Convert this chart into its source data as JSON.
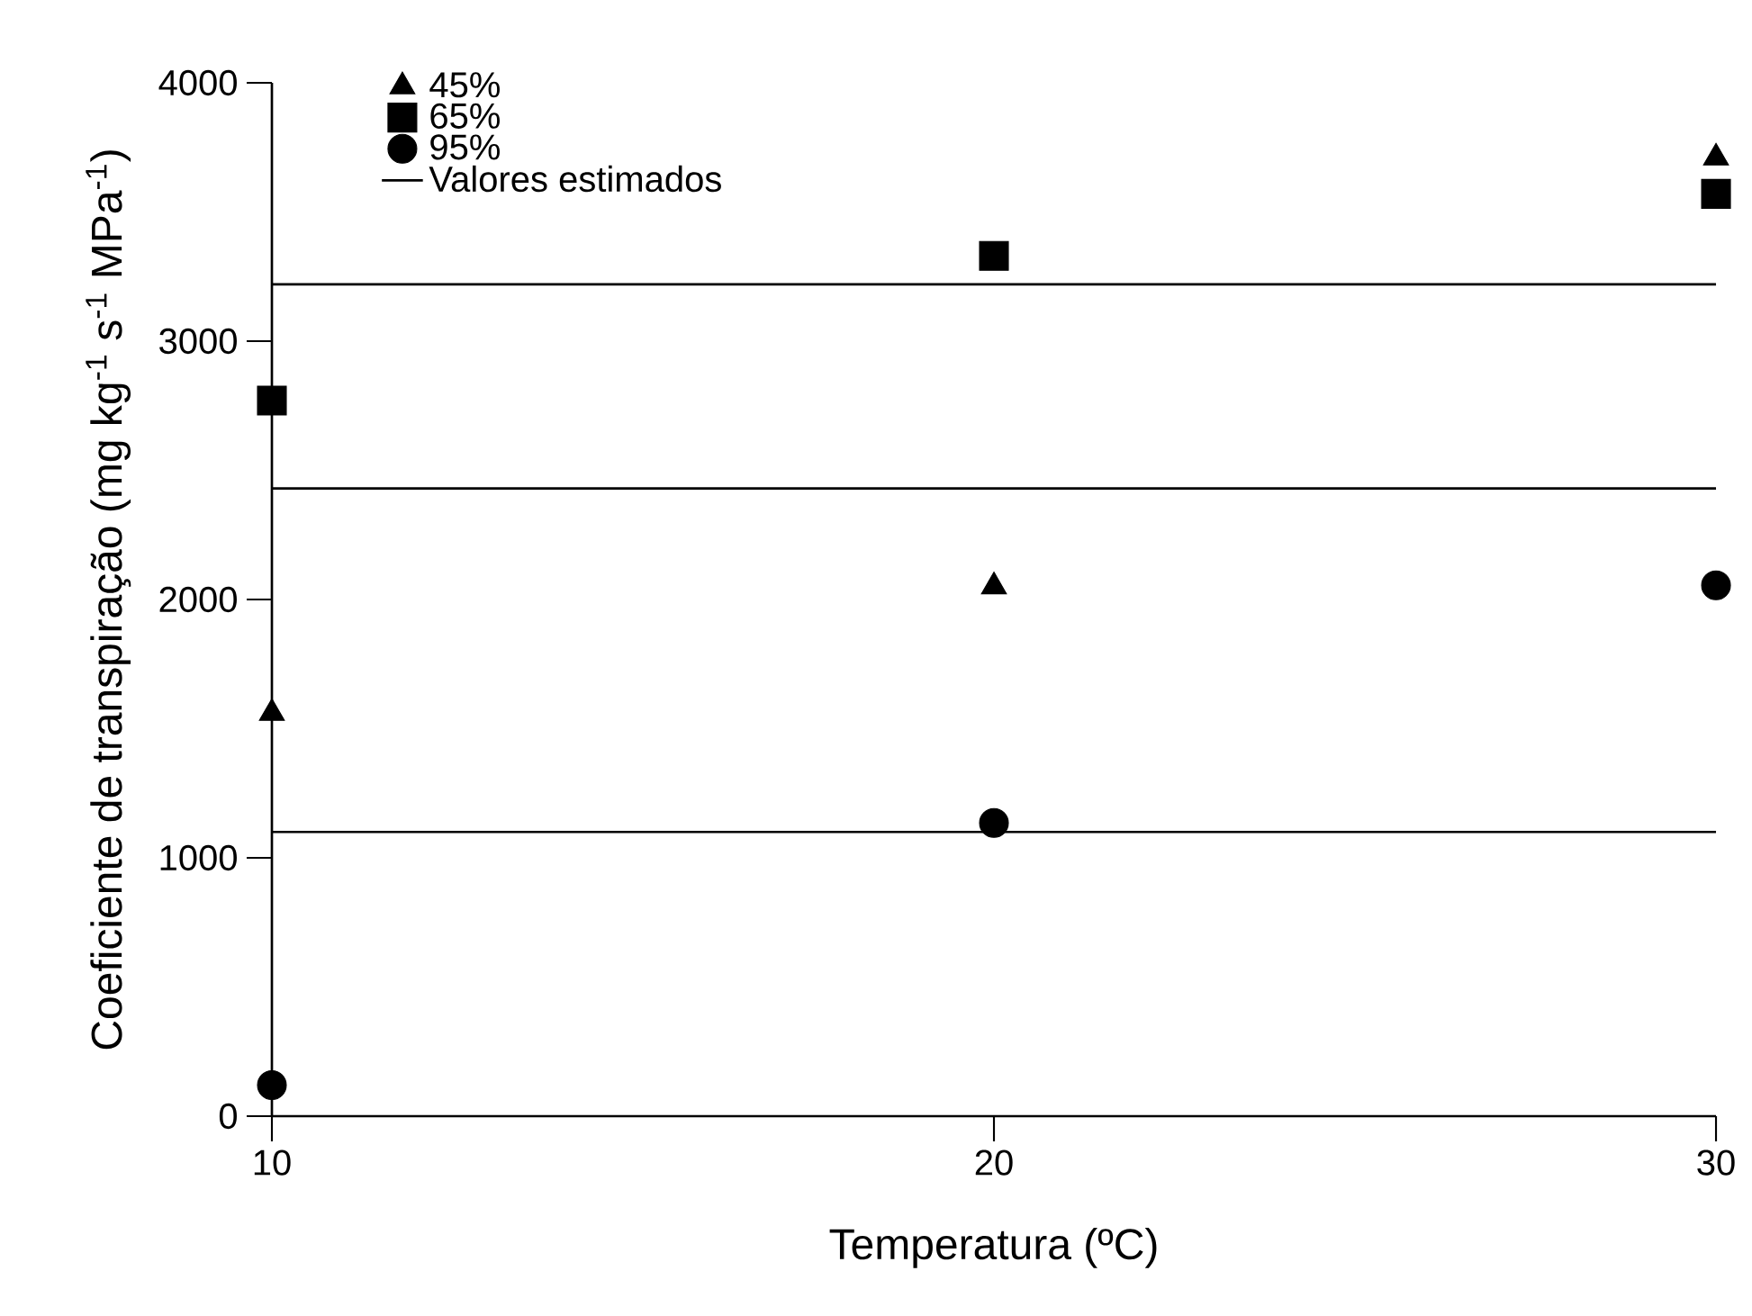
{
  "chart_data": {
    "type": "scatter",
    "xlabel": "Temperatura (ºC)",
    "ylabel": "Coeficiente de transpiração (mg kg$^{-1}$ s$^{-1}$ MPa$^{-1}$)",
    "x": [
      10,
      20,
      30
    ],
    "xlim": [
      10,
      30
    ],
    "xticks": [
      10,
      20,
      30
    ],
    "ylim": [
      0,
      4000
    ],
    "yticks": [
      0,
      1000,
      2000,
      3000,
      4000
    ],
    "grid": false,
    "legend": "top left",
    "series": [
      {
        "name": "45%",
        "color": "#000000",
        "marker": "triangle",
        "values": [
          1560,
          2050,
          3710
        ]
      },
      {
        "name": "65%",
        "color": "#000000",
        "marker": "square",
        "values": [
          2770,
          3330,
          3570
        ]
      },
      {
        "name": "95%",
        "color": "#000000",
        "marker": "circle",
        "values": [
          120,
          1135,
          2055
        ]
      },
      {
        "name": "Valores estimados",
        "type": "line",
        "color": "#000000",
        "line_style": "solid",
        "values": [
          3220,
          3220,
          3220
        ]
      },
      {
        "type": "line",
        "color": "#000000",
        "line_style": "solid",
        "values": [
          2430,
          2430,
          2430
        ]
      },
      {
        "type": "line",
        "color": "#000000",
        "line_style": "solid",
        "values": [
          1100,
          1100,
          1100
        ]
      }
    ]
  }
}
